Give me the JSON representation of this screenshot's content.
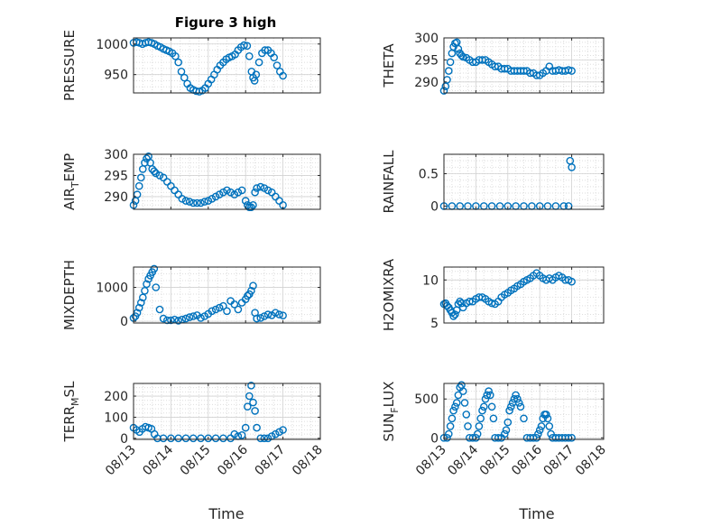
{
  "figure": {
    "title": "Figure 3 high",
    "xlabel": "Time"
  },
  "colors": {
    "marker": "#0072BD",
    "axis": "#262626",
    "grid": "#b0b0b0"
  },
  "x_ticks": [
    "08/13",
    "08/14",
    "08/15",
    "08/16",
    "08/17",
    "08/18"
  ],
  "chart_data": [
    {
      "type": "scatter",
      "title": "Figure 3 high",
      "ylabel": "PRESSURE",
      "ylim": [
        920,
        1010
      ],
      "yticks": [
        950,
        1000
      ],
      "xlim": [
        0,
        5
      ],
      "grid": true,
      "x": [
        0.0,
        0.08,
        0.16,
        0.24,
        0.32,
        0.4,
        0.48,
        0.56,
        0.64,
        0.72,
        0.8,
        0.88,
        0.96,
        1.04,
        1.12,
        1.2,
        1.28,
        1.36,
        1.44,
        1.52,
        1.6,
        1.68,
        1.76,
        1.84,
        1.92,
        2.0,
        2.08,
        2.16,
        2.24,
        2.32,
        2.4,
        2.48,
        2.56,
        2.64,
        2.72,
        2.8,
        2.88,
        2.96,
        3.04,
        3.1,
        3.16,
        3.2,
        3.24,
        3.28,
        3.36,
        3.44,
        3.52,
        3.6,
        3.68,
        3.76,
        3.84,
        3.92,
        4.0
      ],
      "y": [
        1002,
        1003,
        1002,
        1000,
        1002,
        1003,
        1002,
        1000,
        997,
        995,
        992,
        990,
        988,
        985,
        980,
        970,
        955,
        945,
        935,
        928,
        925,
        923,
        922,
        924,
        928,
        935,
        942,
        950,
        958,
        965,
        970,
        975,
        978,
        980,
        983,
        990,
        995,
        998,
        997,
        980,
        955,
        945,
        940,
        950,
        970,
        985,
        990,
        990,
        985,
        978,
        965,
        955,
        948
      ]
    },
    {
      "type": "scatter",
      "ylabel": "THETA",
      "ylim": [
        287.5,
        300
      ],
      "yticks": [
        290,
        295,
        300
      ],
      "xlim": [
        0,
        5
      ],
      "grid": true,
      "x": [
        0.0,
        0.05,
        0.1,
        0.15,
        0.2,
        0.25,
        0.3,
        0.35,
        0.4,
        0.45,
        0.5,
        0.55,
        0.6,
        0.7,
        0.8,
        0.9,
        1.0,
        1.1,
        1.2,
        1.3,
        1.4,
        1.5,
        1.6,
        1.7,
        1.8,
        1.9,
        2.0,
        2.1,
        2.2,
        2.3,
        2.4,
        2.5,
        2.6,
        2.7,
        2.8,
        2.9,
        3.0,
        3.1,
        3.2,
        3.3,
        3.4,
        3.5,
        3.6,
        3.7,
        3.8,
        3.9,
        4.0
      ],
      "y": [
        288,
        289,
        290.5,
        292.5,
        294.5,
        296.5,
        298,
        298.8,
        299,
        297.5,
        296.5,
        296,
        295.7,
        295.5,
        295,
        294.5,
        294.5,
        295,
        295,
        295,
        294.5,
        294,
        293.5,
        293.5,
        293,
        293,
        293,
        292.5,
        292.5,
        292.5,
        292.5,
        292.5,
        292.5,
        292,
        292,
        291.5,
        291.5,
        292,
        292.5,
        293.5,
        292.5,
        292.5,
        292.7,
        292.5,
        292.5,
        292.7,
        292.5
      ]
    },
    {
      "type": "scatter",
      "ylabel": "AIR_TEMP",
      "ylim": [
        287,
        300
      ],
      "yticks": [
        290,
        295,
        300
      ],
      "xlim": [
        0,
        5
      ],
      "grid": true,
      "x": [
        0.0,
        0.05,
        0.1,
        0.15,
        0.2,
        0.25,
        0.3,
        0.35,
        0.4,
        0.45,
        0.5,
        0.55,
        0.6,
        0.7,
        0.8,
        0.9,
        1.0,
        1.1,
        1.2,
        1.3,
        1.4,
        1.5,
        1.6,
        1.7,
        1.8,
        1.9,
        2.0,
        2.1,
        2.2,
        2.3,
        2.4,
        2.5,
        2.6,
        2.7,
        2.8,
        2.9,
        3.0,
        3.05,
        3.1,
        3.15,
        3.2,
        3.25,
        3.3,
        3.4,
        3.5,
        3.6,
        3.7,
        3.8,
        3.9,
        4.0
      ],
      "y": [
        288,
        289,
        290.5,
        292.5,
        294.5,
        296.5,
        298,
        299,
        299.5,
        298,
        296.5,
        296,
        295.5,
        295,
        294.5,
        293.5,
        292.5,
        291.5,
        290.5,
        289.5,
        289,
        288.8,
        288.5,
        288.5,
        288.5,
        288.8,
        289,
        289.5,
        290,
        290.5,
        291,
        291.5,
        291,
        290.5,
        291,
        291.5,
        289,
        288,
        287.5,
        287.5,
        288,
        291,
        292,
        292.3,
        292,
        291.5,
        291,
        290,
        289,
        288
      ]
    },
    {
      "type": "scatter",
      "ylabel": "RAINFALL",
      "ylim": [
        -0.05,
        0.8
      ],
      "yticks": [
        0,
        0.5
      ],
      "xlim": [
        0,
        5
      ],
      "grid": true,
      "x": [
        0.0,
        0.25,
        0.5,
        0.75,
        1.0,
        1.25,
        1.5,
        1.75,
        2.0,
        2.25,
        2.5,
        2.75,
        3.0,
        3.25,
        3.5,
        3.75,
        3.9,
        3.95,
        4.0
      ],
      "y": [
        0,
        0,
        0,
        0,
        0,
        0,
        0,
        0,
        0,
        0,
        0,
        0,
        0,
        0,
        0,
        0,
        0,
        0.7,
        0.6
      ]
    },
    {
      "type": "scatter",
      "ylabel": "MIXDEPTH",
      "ylim": [
        -50,
        1600
      ],
      "yticks": [
        0,
        1000
      ],
      "xlim": [
        0,
        5
      ],
      "grid": true,
      "x": [
        0.0,
        0.05,
        0.1,
        0.15,
        0.2,
        0.25,
        0.3,
        0.35,
        0.4,
        0.45,
        0.5,
        0.55,
        0.6,
        0.7,
        0.8,
        0.9,
        1.0,
        1.1,
        1.2,
        1.3,
        1.4,
        1.5,
        1.6,
        1.7,
        1.8,
        1.9,
        2.0,
        2.1,
        2.2,
        2.3,
        2.4,
        2.5,
        2.6,
        2.7,
        2.8,
        2.9,
        3.0,
        3.05,
        3.1,
        3.15,
        3.2,
        3.25,
        3.3,
        3.4,
        3.5,
        3.6,
        3.7,
        3.8,
        3.9,
        4.0
      ],
      "y": [
        100,
        150,
        250,
        400,
        550,
        700,
        900,
        1100,
        1250,
        1350,
        1450,
        1550,
        1000,
        350,
        80,
        30,
        30,
        50,
        20,
        50,
        80,
        120,
        150,
        180,
        100,
        150,
        220,
        300,
        350,
        400,
        450,
        300,
        600,
        500,
        350,
        550,
        650,
        750,
        800,
        900,
        1050,
        250,
        80,
        100,
        150,
        200,
        180,
        250,
        200,
        170
      ]
    },
    {
      "type": "scatter",
      "ylabel": "H2OMIXRA",
      "ylim": [
        5,
        11.5
      ],
      "yticks": [
        5,
        10
      ],
      "xlim": [
        0,
        5
      ],
      "grid": true,
      "x": [
        0.0,
        0.05,
        0.1,
        0.15,
        0.2,
        0.25,
        0.3,
        0.35,
        0.4,
        0.45,
        0.5,
        0.55,
        0.6,
        0.7,
        0.8,
        0.9,
        1.0,
        1.1,
        1.2,
        1.3,
        1.4,
        1.5,
        1.6,
        1.7,
        1.8,
        1.9,
        2.0,
        2.1,
        2.2,
        2.3,
        2.4,
        2.5,
        2.6,
        2.7,
        2.8,
        2.9,
        3.0,
        3.1,
        3.2,
        3.3,
        3.4,
        3.5,
        3.6,
        3.7,
        3.8,
        3.9,
        4.0
      ],
      "y": [
        7.2,
        7.3,
        7.0,
        6.8,
        6.5,
        6.2,
        5.8,
        6.0,
        6.5,
        7.2,
        7.5,
        7.3,
        6.8,
        7.3,
        7.5,
        7.5,
        7.8,
        8.0,
        8.0,
        7.8,
        7.5,
        7.3,
        7.2,
        7.5,
        8.0,
        8.3,
        8.5,
        8.8,
        9.0,
        9.3,
        9.5,
        9.8,
        10.0,
        10.2,
        10.5,
        10.8,
        10.5,
        10.2,
        10.0,
        10.2,
        10.0,
        10.3,
        10.5,
        10.3,
        10.0,
        10.0,
        9.8
      ]
    },
    {
      "type": "scatter",
      "ylabel": "TERR_MSL",
      "ylim": [
        -5,
        260
      ],
      "yticks": [
        0,
        100,
        200
      ],
      "xlim": [
        0,
        5
      ],
      "grid": true,
      "x": [
        0.0,
        0.08,
        0.16,
        0.24,
        0.32,
        0.4,
        0.48,
        0.56,
        0.64,
        0.8,
        1.0,
        1.2,
        1.4,
        1.6,
        1.8,
        2.0,
        2.2,
        2.4,
        2.6,
        2.7,
        2.8,
        2.9,
        3.0,
        3.05,
        3.1,
        3.15,
        3.2,
        3.25,
        3.3,
        3.4,
        3.5,
        3.6,
        3.7,
        3.8,
        3.9,
        4.0
      ],
      "y": [
        50,
        40,
        30,
        45,
        55,
        50,
        45,
        20,
        0,
        0,
        0,
        0,
        0,
        0,
        0,
        0,
        0,
        0,
        0,
        20,
        10,
        15,
        50,
        150,
        200,
        250,
        170,
        130,
        50,
        0,
        0,
        0,
        10,
        20,
        30,
        40
      ]
    },
    {
      "type": "scatter",
      "ylabel": "SUN_FLUX",
      "ylim": [
        -20,
        700
      ],
      "yticks": [
        0,
        500
      ],
      "xlim": [
        0,
        5
      ],
      "grid": true,
      "x": [
        0.0,
        0.1,
        0.15,
        0.2,
        0.25,
        0.3,
        0.35,
        0.4,
        0.45,
        0.5,
        0.55,
        0.6,
        0.65,
        0.7,
        0.75,
        0.8,
        0.9,
        1.0,
        1.05,
        1.1,
        1.15,
        1.2,
        1.25,
        1.3,
        1.35,
        1.4,
        1.45,
        1.5,
        1.55,
        1.6,
        1.7,
        1.8,
        1.9,
        1.95,
        2.0,
        2.05,
        2.1,
        2.15,
        2.2,
        2.25,
        2.3,
        2.35,
        2.4,
        2.5,
        2.6,
        2.7,
        2.8,
        2.9,
        2.95,
        3.0,
        3.05,
        3.1,
        3.15,
        3.2,
        3.25,
        3.3,
        3.35,
        3.4,
        3.5,
        3.6,
        3.7,
        3.8,
        3.9,
        4.0
      ],
      "y": [
        0,
        0,
        50,
        150,
        250,
        350,
        400,
        450,
        550,
        650,
        680,
        600,
        450,
        300,
        150,
        0,
        0,
        0,
        50,
        150,
        250,
        350,
        400,
        500,
        550,
        600,
        550,
        400,
        250,
        0,
        0,
        0,
        50,
        100,
        200,
        350,
        400,
        450,
        500,
        550,
        500,
        450,
        400,
        250,
        0,
        0,
        0,
        0,
        50,
        100,
        150,
        250,
        300,
        300,
        250,
        150,
        50,
        0,
        0,
        0,
        0,
        0,
        0,
        0
      ]
    }
  ]
}
